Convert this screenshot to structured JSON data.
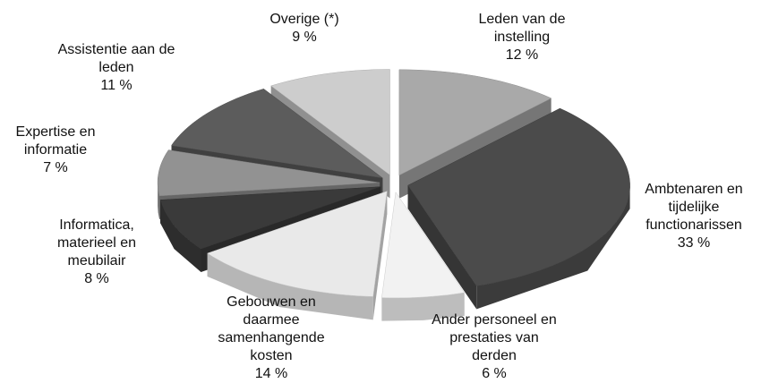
{
  "chart_data": {
    "type": "pie",
    "categories": [
      [
        "Leden van de",
        "instelling"
      ],
      [
        "Ambtenaren en",
        "tijdelijke",
        "functionarissen"
      ],
      [
        "Ander personeel en",
        "prestaties van",
        "derden"
      ],
      [
        "Gebouwen en",
        "daarmee",
        "samenhangende",
        "kosten"
      ],
      [
        "Informatica,",
        "materieel en",
        "meubilair"
      ],
      [
        "Expertise en",
        "informatie"
      ],
      [
        "Assistentie aan de",
        "leden"
      ],
      [
        "Overige (*)"
      ]
    ],
    "values": [
      12,
      33,
      6,
      14,
      8,
      7,
      11,
      9
    ],
    "value_labels": [
      "12 %",
      "33 %",
      "6 %",
      "14 %",
      "8 %",
      "7 %",
      "11 %",
      "9 %"
    ],
    "colors": [
      "#a9a9a9",
      "#4b4b4b",
      "#f2f2f2",
      "#e9e9e9",
      "#3a3a3a",
      "#929292",
      "#5c5c5c",
      "#cdcdcd"
    ]
  }
}
